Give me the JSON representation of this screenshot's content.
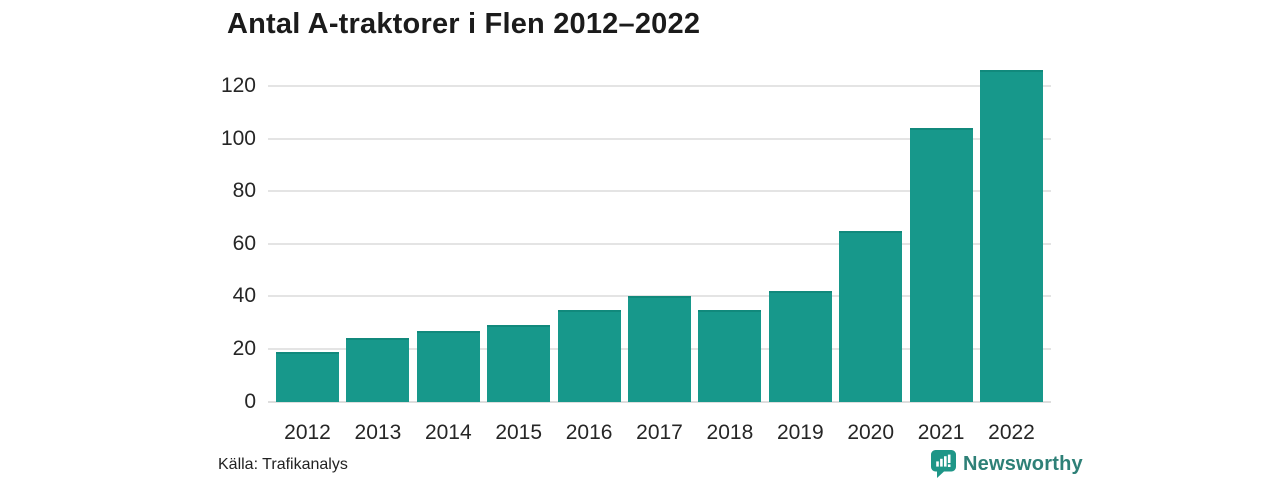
{
  "title": "Antal A-traktorer i Flen 2012–2022",
  "footer": {
    "source": "Källa: Trafikanalys",
    "brand_name": "Newsworthy",
    "brand_icon": "newsworthy-speech-bubble-bar-chart-icon"
  },
  "colors": {
    "bar": "#17988b",
    "bar_top_edge": "#11897c",
    "grid": "#e4e4e4",
    "baseline": "#dedede",
    "title_text": "#1b1b1b",
    "tick_text": "#262626",
    "source_text": "#222222",
    "brand_text": "#2e8077",
    "brand_icon_fill": "#1e9687",
    "background": "#ffffff"
  },
  "chart_data": {
    "type": "bar",
    "title": "Antal A-traktorer i Flen 2012–2022",
    "categories": [
      "2012",
      "2013",
      "2014",
      "2015",
      "2016",
      "2017",
      "2018",
      "2019",
      "2020",
      "2021",
      "2022"
    ],
    "values": [
      19,
      24,
      27,
      29,
      35,
      40,
      35,
      42,
      65,
      104,
      126
    ],
    "series_name": "Antal A-traktorer",
    "xlabel": "",
    "ylabel": "",
    "ylim": [
      0,
      130
    ],
    "yticks": [
      0,
      20,
      40,
      60,
      80,
      100,
      120
    ],
    "grid": true,
    "legend": false,
    "legend_position": "none"
  }
}
